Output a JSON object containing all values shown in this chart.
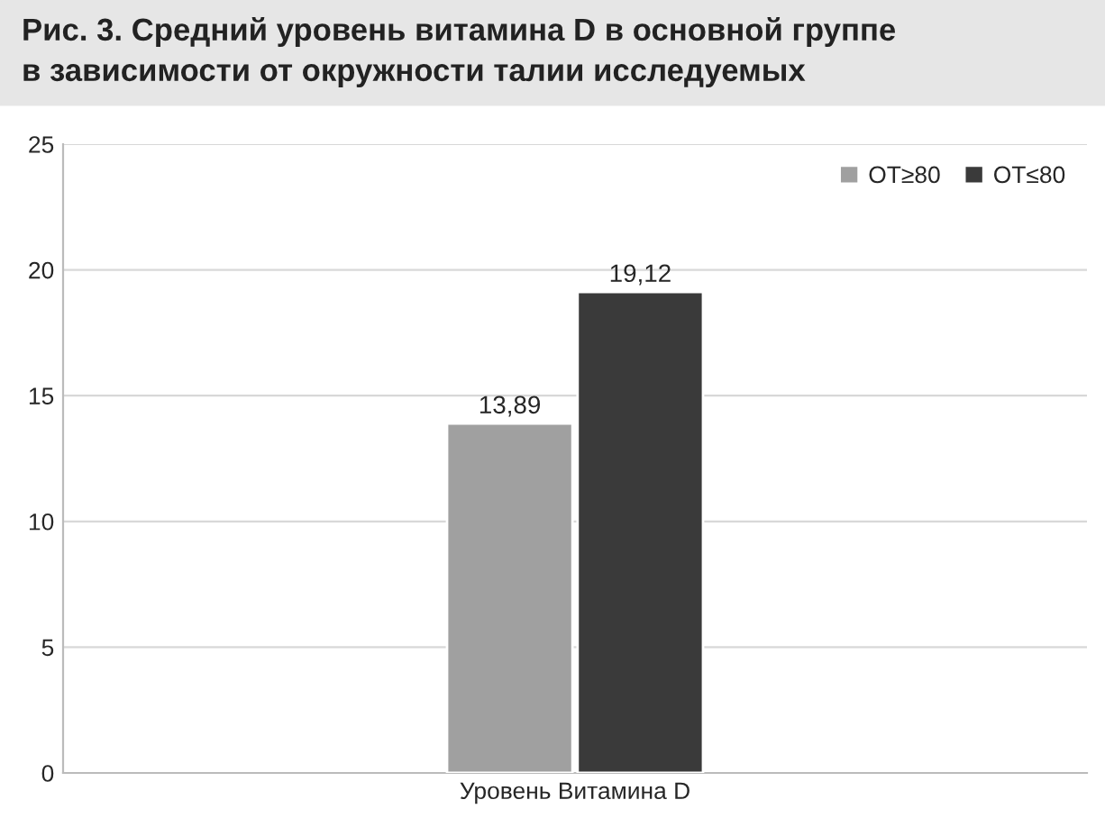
{
  "chart_data": {
    "type": "bar",
    "title": "Рис. 3. Средний уровень витамина D в основной группе\nв зависимости от окружности талии исследуемых",
    "categories": [
      "Уровень Витамина D"
    ],
    "series": [
      {
        "name": "ОТ≥80",
        "color": "#a0a0a0",
        "values": [
          13.89
        ],
        "value_labels": [
          "13,89"
        ]
      },
      {
        "name": "ОТ≤80",
        "color": "#3a3a3a",
        "values": [
          19.12
        ],
        "value_labels": [
          "19,12"
        ]
      }
    ],
    "ylim": [
      0,
      25
    ],
    "yticks": [
      0,
      5,
      10,
      15,
      20,
      25
    ],
    "grid": "y",
    "legend": "top right"
  }
}
